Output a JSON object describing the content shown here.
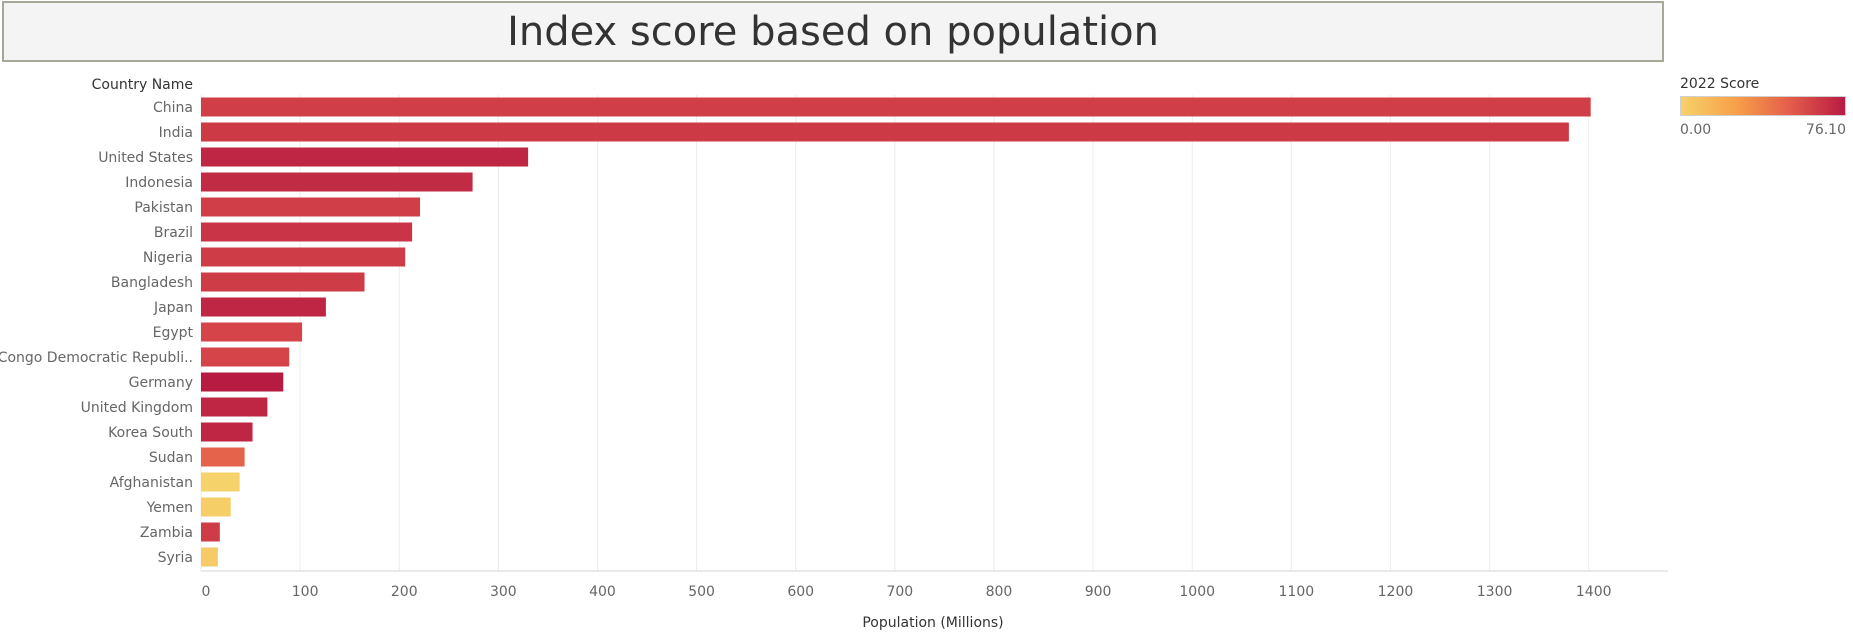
{
  "title": "Index score based on population",
  "chart_data": {
    "type": "bar",
    "orientation": "horizontal",
    "row_header": "Country Name",
    "categories": [
      "China",
      "India",
      "United States",
      "Indonesia",
      "Pakistan",
      "Brazil",
      "Nigeria",
      "Bangladesh",
      "Japan",
      "Egypt",
      "Congo Democratic Republi..",
      "Germany",
      "United Kingdom",
      "Korea South",
      "Sudan",
      "Afghanistan",
      "Yemen",
      "Zambia",
      "Syria"
    ],
    "values": [
      1402,
      1380,
      330,
      274,
      221,
      213,
      206,
      165,
      126,
      102,
      89,
      83,
      67,
      52,
      44,
      39,
      30,
      19,
      17
    ],
    "scores": [
      62,
      64,
      72,
      70,
      62,
      66,
      63,
      63,
      72,
      60,
      60,
      76,
      72,
      72,
      48,
      0,
      2,
      63,
      4
    ],
    "xlabel": "Population (Millions)",
    "xlim": [
      0,
      1480
    ],
    "xticks": [
      0,
      100,
      200,
      300,
      400,
      500,
      600,
      700,
      800,
      900,
      1000,
      1100,
      1200,
      1300,
      1400
    ],
    "grid": "vertical",
    "color_legend": {
      "title": "2022 Score",
      "min_label": "0.00",
      "max_label": "76.10",
      "min": 0,
      "max": 76.1,
      "colors": [
        "#f6d26b",
        "#f7a04a",
        "#e45c4b",
        "#b71b42"
      ]
    }
  }
}
